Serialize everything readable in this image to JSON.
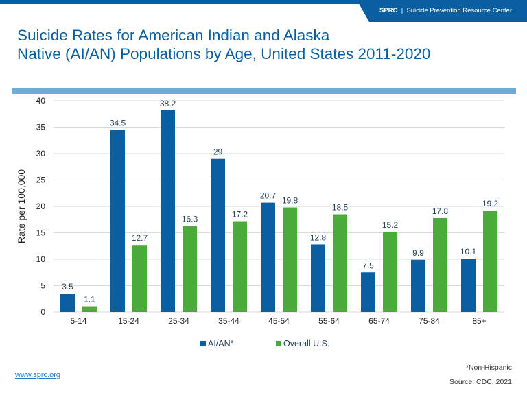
{
  "header": {
    "brand": "SPRC",
    "separator": "|",
    "org": "Suicide Prevention Resource Center"
  },
  "title_line1": "Suicide Rates for American Indian and Alaska",
  "title_line2": "Native (AI/AN) Populations by Age, United States 2011-2020",
  "footer": {
    "link": "www.sprc.org",
    "note": "*Non-Hispanic",
    "source": "Source:  CDC, 2021"
  },
  "chart_data": {
    "type": "bar",
    "title": "Suicide Rates for American Indian and Alaska Native (AI/AN) Populations by Age, United States 2011-2020",
    "xlabel": "",
    "ylabel": "Rate per 100,000",
    "ylim": [
      0,
      40
    ],
    "yticks": [
      0,
      5,
      10,
      15,
      20,
      25,
      30,
      35,
      40
    ],
    "grid": true,
    "legend": "bottom",
    "categories": [
      "5-14",
      "15-24",
      "25-34",
      "35-44",
      "45-54",
      "55-64",
      "65-74",
      "75-84",
      "85+"
    ],
    "series": [
      {
        "name": "AI/AN*",
        "color": "#0a5fa0",
        "values": [
          3.5,
          34.5,
          38.2,
          29,
          20.7,
          12.8,
          7.5,
          9.9,
          10.1
        ]
      },
      {
        "name": "Overall U.S.",
        "color": "#4aaa3a",
        "values": [
          1.1,
          12.7,
          16.3,
          17.2,
          19.8,
          18.5,
          15.2,
          17.8,
          19.2
        ]
      }
    ]
  }
}
